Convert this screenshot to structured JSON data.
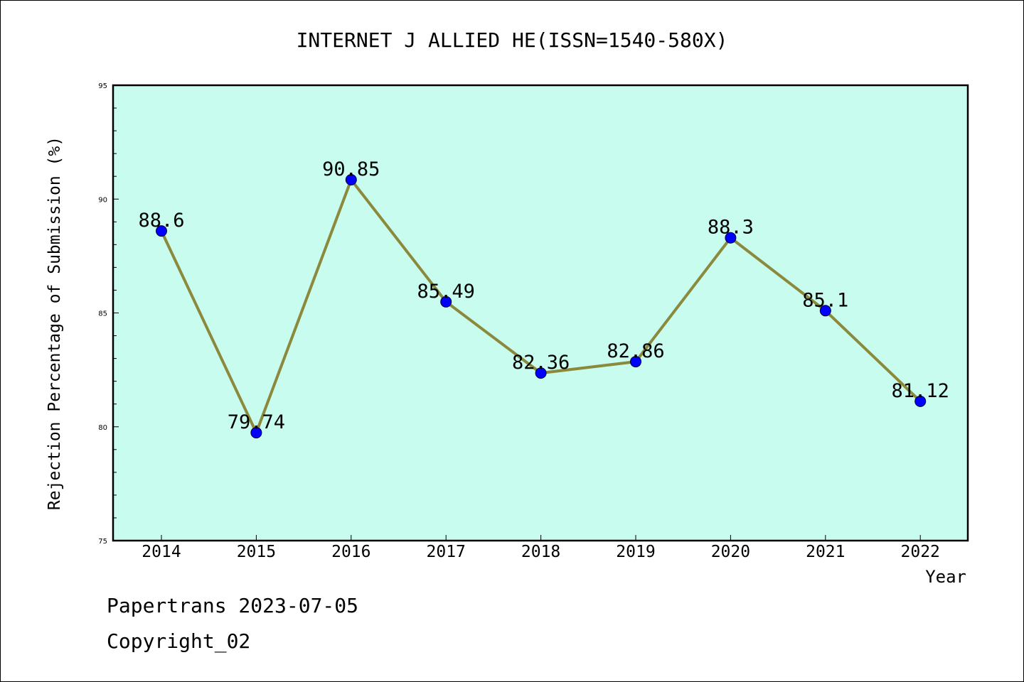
{
  "chart_data": {
    "type": "line",
    "title": "INTERNET J ALLIED HE(ISSN=1540-580X)",
    "xlabel": "Year",
    "ylabel": "Rejection Percentage of Submission (%)",
    "categories": [
      "2014",
      "2015",
      "2016",
      "2017",
      "2018",
      "2019",
      "2020",
      "2021",
      "2022"
    ],
    "values": [
      88.6,
      79.74,
      90.85,
      85.49,
      82.36,
      82.86,
      88.3,
      85.1,
      81.12
    ],
    "data_labels": [
      "88.6",
      "79.74",
      "90.85",
      "85.49",
      "82.36",
      "82.86",
      "88.3",
      "85.1",
      "81.12"
    ],
    "ylim": [
      75,
      95
    ],
    "yticks": [
      75,
      80,
      85,
      90,
      95
    ],
    "yticks_labels": [
      "75",
      "80",
      "85",
      "90",
      "95"
    ],
    "grid": false,
    "legend": "none",
    "colors": {
      "plot_background": "#c8fcee",
      "line": "#8b8a3c",
      "marker": "#0000ff",
      "axes": "#000000"
    }
  },
  "footer": {
    "line1": "Papertrans 2023-07-05",
    "line2": "Copyright_02"
  }
}
